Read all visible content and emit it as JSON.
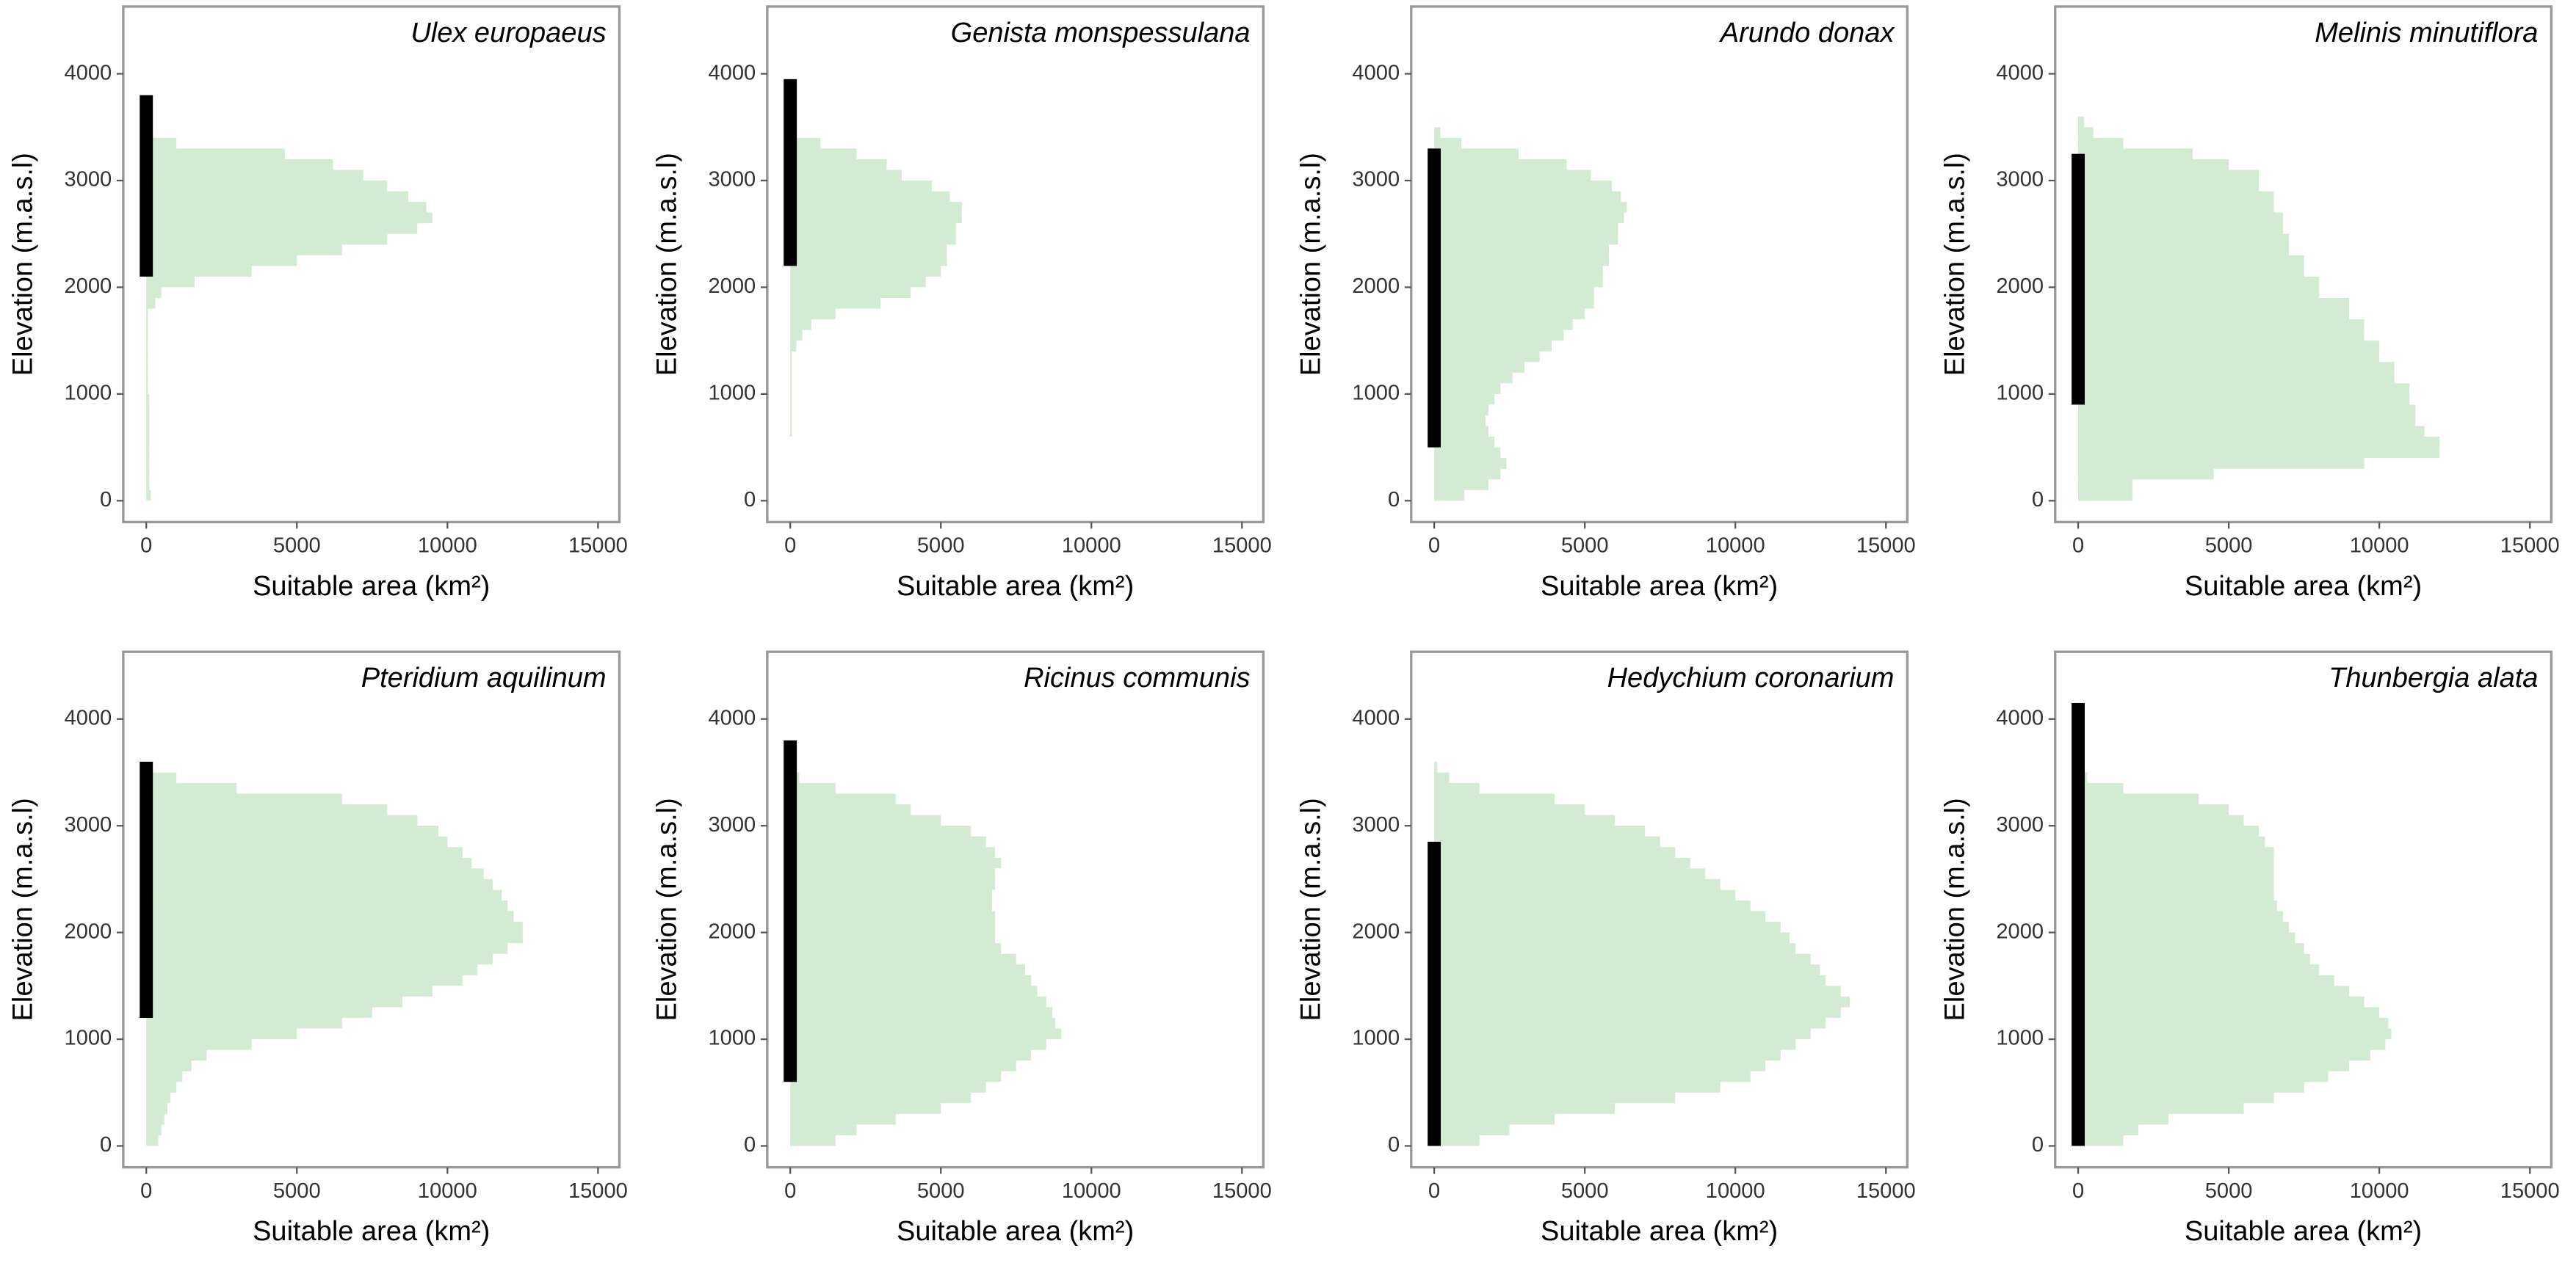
{
  "chart_data": [
    {
      "type": "histogram",
      "orientation": "horizontal",
      "title": "Ulex europaeus",
      "xlabel": "Suitable area (km²)",
      "ylabel": "Elevation (m.a.s.l)",
      "color": "#d3ead3",
      "range_color": "#000000",
      "bins": [
        0,
        100,
        200,
        300,
        400,
        500,
        600,
        700,
        800,
        900,
        1000,
        1100,
        1200,
        1300,
        1400,
        1500,
        1600,
        1700,
        1800,
        1900,
        2000,
        2100,
        2200,
        2300,
        2400,
        2500,
        2600,
        2700,
        2800,
        2900,
        3000,
        3100,
        3200,
        3300,
        3400,
        3500,
        3600
      ],
      "values": [
        150,
        100,
        100,
        100,
        100,
        100,
        100,
        100,
        100,
        100,
        50,
        50,
        50,
        50,
        50,
        50,
        50,
        50,
        300,
        500,
        1600,
        3500,
        5000,
        6500,
        8000,
        9000,
        9500,
        9300,
        8700,
        8000,
        7200,
        6200,
        4600,
        1000,
        200,
        0
      ],
      "elevation_range": [
        2100,
        3800
      ],
      "xlim": [
        -764,
        15710
      ],
      "ylim": [
        -200,
        4630
      ],
      "xticks": [
        0,
        5000,
        10000,
        15000
      ],
      "yticks": [
        0,
        1000,
        2000,
        3000,
        4000
      ]
    },
    {
      "type": "histogram",
      "orientation": "horizontal",
      "title": "Genista monspessulana",
      "xlabel": "Suitable area (km²)",
      "ylabel": "Elevation (m.a.s.l)",
      "color": "#d3ead3",
      "range_color": "#000000",
      "bins": [
        0,
        100,
        200,
        300,
        400,
        500,
        600,
        700,
        800,
        900,
        1000,
        1100,
        1200,
        1300,
        1400,
        1500,
        1600,
        1700,
        1800,
        1900,
        2000,
        2100,
        2200,
        2300,
        2400,
        2500,
        2600,
        2700,
        2800,
        2900,
        3000,
        3100,
        3200,
        3300,
        3400,
        3500,
        3600
      ],
      "values": [
        0,
        0,
        0,
        0,
        0,
        0,
        50,
        50,
        50,
        50,
        50,
        50,
        50,
        50,
        200,
        400,
        700,
        1500,
        3000,
        4000,
        4500,
        5000,
        5200,
        5200,
        5500,
        5500,
        5700,
        5700,
        5300,
        4700,
        3700,
        3200,
        2200,
        1000,
        200,
        0
      ],
      "elevation_range": [
        2200,
        3950
      ],
      "xlim": [
        -764,
        15710
      ],
      "ylim": [
        -200,
        4630
      ],
      "xticks": [
        0,
        5000,
        10000,
        15000
      ],
      "yticks": [
        0,
        1000,
        2000,
        3000,
        4000
      ]
    },
    {
      "type": "histogram",
      "orientation": "horizontal",
      "title": "Arundo donax",
      "xlabel": "Suitable area (km²)",
      "ylabel": "Elevation (m.a.s.l)",
      "color": "#d3ead3",
      "range_color": "#000000",
      "bins": [
        0,
        100,
        200,
        300,
        400,
        500,
        600,
        700,
        800,
        900,
        1000,
        1100,
        1200,
        1300,
        1400,
        1500,
        1600,
        1700,
        1800,
        1900,
        2000,
        2100,
        2200,
        2300,
        2400,
        2500,
        2600,
        2700,
        2800,
        2900,
        3000,
        3100,
        3200,
        3300,
        3400,
        3500,
        3600
      ],
      "values": [
        1000,
        1800,
        2200,
        2400,
        2200,
        2000,
        1800,
        1700,
        1800,
        2000,
        2200,
        2600,
        3000,
        3500,
        3900,
        4300,
        4600,
        5000,
        5300,
        5300,
        5600,
        5600,
        5800,
        5800,
        6100,
        6100,
        6300,
        6400,
        6200,
        5900,
        5200,
        4400,
        2800,
        900,
        200,
        0
      ],
      "elevation_range": [
        500,
        3300
      ],
      "xlim": [
        -764,
        15710
      ],
      "ylim": [
        -200,
        4630
      ],
      "xticks": [
        0,
        5000,
        10000,
        15000
      ],
      "yticks": [
        0,
        1000,
        2000,
        3000,
        4000
      ]
    },
    {
      "type": "histogram",
      "orientation": "horizontal",
      "title": "Melinis minutiflora",
      "xlabel": "Suitable area (km²)",
      "ylabel": "Elevation (m.a.s.l)",
      "color": "#d3ead3",
      "range_color": "#000000",
      "bins": [
        0,
        100,
        200,
        300,
        400,
        500,
        600,
        700,
        800,
        900,
        1000,
        1100,
        1200,
        1300,
        1400,
        1500,
        1600,
        1700,
        1800,
        1900,
        2000,
        2100,
        2200,
        2300,
        2400,
        2500,
        2600,
        2700,
        2800,
        2900,
        3000,
        3100,
        3200,
        3300,
        3400,
        3500,
        3600
      ],
      "values": [
        1800,
        1800,
        4500,
        9500,
        12000,
        12000,
        11500,
        11200,
        11200,
        11000,
        11000,
        10500,
        10500,
        10000,
        10000,
        9500,
        9500,
        9000,
        9000,
        8000,
        8000,
        7500,
        7500,
        7000,
        7000,
        6800,
        6800,
        6500,
        6500,
        6000,
        6000,
        5000,
        3800,
        1500,
        500,
        200
      ],
      "elevation_range": [
        900,
        3250
      ],
      "xlim": [
        -764,
        15710
      ],
      "ylim": [
        -200,
        4630
      ],
      "xticks": [
        0,
        5000,
        10000,
        15000
      ],
      "yticks": [
        0,
        1000,
        2000,
        3000,
        4000
      ]
    },
    {
      "type": "histogram",
      "orientation": "horizontal",
      "title": "Pteridium aquilinum",
      "xlabel": "Suitable area (km²)",
      "ylabel": "Elevation (m.a.s.l)",
      "color": "#d3ead3",
      "range_color": "#000000",
      "bins": [
        0,
        100,
        200,
        300,
        400,
        500,
        600,
        700,
        800,
        900,
        1000,
        1100,
        1200,
        1300,
        1400,
        1500,
        1600,
        1700,
        1800,
        1900,
        2000,
        2100,
        2200,
        2300,
        2400,
        2500,
        2600,
        2700,
        2800,
        2900,
        3000,
        3100,
        3200,
        3300,
        3400,
        3500,
        3600
      ],
      "values": [
        400,
        500,
        600,
        700,
        800,
        1000,
        1200,
        1500,
        2000,
        3500,
        5000,
        6500,
        7500,
        8500,
        9500,
        10500,
        11000,
        11500,
        12000,
        12500,
        12500,
        12200,
        12000,
        11800,
        11500,
        11200,
        10800,
        10500,
        10000,
        9700,
        9000,
        8000,
        6500,
        3000,
        1000,
        200
      ],
      "elevation_range": [
        1200,
        3600
      ],
      "xlim": [
        -764,
        15710
      ],
      "ylim": [
        -200,
        4630
      ],
      "xticks": [
        0,
        5000,
        10000,
        15000
      ],
      "yticks": [
        0,
        1000,
        2000,
        3000,
        4000
      ]
    },
    {
      "type": "histogram",
      "orientation": "horizontal",
      "title": "Ricinus communis",
      "xlabel": "Suitable area (km²)",
      "ylabel": "Elevation (m.a.s.l)",
      "color": "#d3ead3",
      "range_color": "#000000",
      "bins": [
        0,
        100,
        200,
        300,
        400,
        500,
        600,
        700,
        800,
        900,
        1000,
        1100,
        1200,
        1300,
        1400,
        1500,
        1600,
        1700,
        1800,
        1900,
        2000,
        2100,
        2200,
        2300,
        2400,
        2500,
        2600,
        2700,
        2800,
        2900,
        3000,
        3100,
        3200,
        3300,
        3400,
        3500,
        3600
      ],
      "values": [
        1500,
        2200,
        3500,
        5000,
        6000,
        6500,
        7000,
        7500,
        8000,
        8500,
        9000,
        8800,
        8700,
        8500,
        8200,
        8000,
        7800,
        7500,
        7000,
        6800,
        6800,
        6800,
        6700,
        6700,
        6800,
        6800,
        7000,
        6800,
        6500,
        6000,
        5000,
        4000,
        3500,
        1500,
        300,
        0
      ],
      "elevation_range": [
        600,
        3800
      ],
      "xlim": [
        -764,
        15710
      ],
      "ylim": [
        -200,
        4630
      ],
      "xticks": [
        0,
        5000,
        10000,
        15000
      ],
      "yticks": [
        0,
        1000,
        2000,
        3000,
        4000
      ]
    },
    {
      "type": "histogram",
      "orientation": "horizontal",
      "title": "Hedychium coronarium",
      "xlabel": "Suitable area (km²)",
      "ylabel": "Elevation (m.a.s.l)",
      "color": "#d3ead3",
      "range_color": "#000000",
      "bins": [
        0,
        100,
        200,
        300,
        400,
        500,
        600,
        700,
        800,
        900,
        1000,
        1100,
        1200,
        1300,
        1400,
        1500,
        1600,
        1700,
        1800,
        1900,
        2000,
        2100,
        2200,
        2300,
        2400,
        2500,
        2600,
        2700,
        2800,
        2900,
        3000,
        3100,
        3200,
        3300,
        3400,
        3500,
        3600
      ],
      "values": [
        1500,
        2500,
        4000,
        6000,
        8000,
        9500,
        10500,
        11000,
        11500,
        12000,
        12500,
        13000,
        13500,
        13800,
        13500,
        13000,
        12800,
        12500,
        12000,
        11800,
        11500,
        11000,
        10500,
        10000,
        9500,
        9000,
        8500,
        8000,
        7500,
        7000,
        6000,
        5000,
        4000,
        1500,
        500,
        100
      ],
      "elevation_range": [
        0,
        2850
      ],
      "xlim": [
        -764,
        15710
      ],
      "ylim": [
        -200,
        4630
      ],
      "xticks": [
        0,
        5000,
        10000,
        15000
      ],
      "yticks": [
        0,
        1000,
        2000,
        3000,
        4000
      ]
    },
    {
      "type": "histogram",
      "orientation": "horizontal",
      "title": "Thunbergia alata",
      "xlabel": "Suitable area (km²)",
      "ylabel": "Elevation (m.a.s.l)",
      "color": "#d3ead3",
      "range_color": "#000000",
      "bins": [
        0,
        100,
        200,
        300,
        400,
        500,
        600,
        700,
        800,
        900,
        1000,
        1100,
        1200,
        1300,
        1400,
        1500,
        1600,
        1700,
        1800,
        1900,
        2000,
        2100,
        2200,
        2300,
        2400,
        2500,
        2600,
        2700,
        2800,
        2900,
        3000,
        3100,
        3200,
        3300,
        3400,
        3500,
        3600
      ],
      "values": [
        1500,
        2000,
        3000,
        5500,
        6500,
        7500,
        8300,
        9000,
        9700,
        10200,
        10400,
        10300,
        10000,
        9500,
        9000,
        8500,
        8000,
        7700,
        7500,
        7200,
        7000,
        6800,
        6600,
        6500,
        6500,
        6500,
        6500,
        6500,
        6200,
        6000,
        5500,
        5000,
        4000,
        1500,
        300,
        0
      ],
      "elevation_range": [
        0,
        4150
      ],
      "xlim": [
        -764,
        15710
      ],
      "ylim": [
        -200,
        4630
      ],
      "xticks": [
        0,
        5000,
        10000,
        15000
      ],
      "yticks": [
        0,
        1000,
        2000,
        3000,
        4000
      ]
    }
  ]
}
